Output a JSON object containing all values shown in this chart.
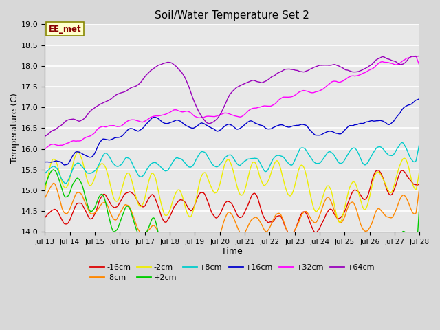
{
  "title": "Soil/Water Temperature Set 2",
  "xlabel": "Time",
  "ylabel": "Temperature (C)",
  "ylim": [
    14.0,
    19.0
  ],
  "yticks": [
    14.0,
    14.5,
    15.0,
    15.5,
    16.0,
    16.5,
    17.0,
    17.5,
    18.0,
    18.5,
    19.0
  ],
  "n_days": 15,
  "start_day": 13,
  "bg_color": "#d8d8d8",
  "plot_bg": "#e8e8e8",
  "grid_color": "#ffffff",
  "annotation_text": "EE_met",
  "annotation_bg": "#ffffcc",
  "annotation_border": "#888800",
  "annotation_text_color": "#880000",
  "series_colors": {
    "-16cm": "#dd0000",
    "-8cm": "#ff8800",
    "-2cm": "#eeee00",
    "+2cm": "#00cc00",
    "+8cm": "#00cccc",
    "+16cm": "#0000cc",
    "+32cm": "#ff00ff",
    "+64cm": "#9900bb"
  },
  "legend_order": [
    "-16cm",
    "-8cm",
    "-2cm",
    "+2cm",
    "+8cm",
    "+16cm",
    "+32cm",
    "+64cm"
  ],
  "legend_row1": [
    "-16cm",
    "-8cm",
    "-2cm",
    "+2cm",
    "+8cm",
    "+16cm"
  ],
  "legend_row2": [
    "+32cm",
    "+64cm"
  ]
}
